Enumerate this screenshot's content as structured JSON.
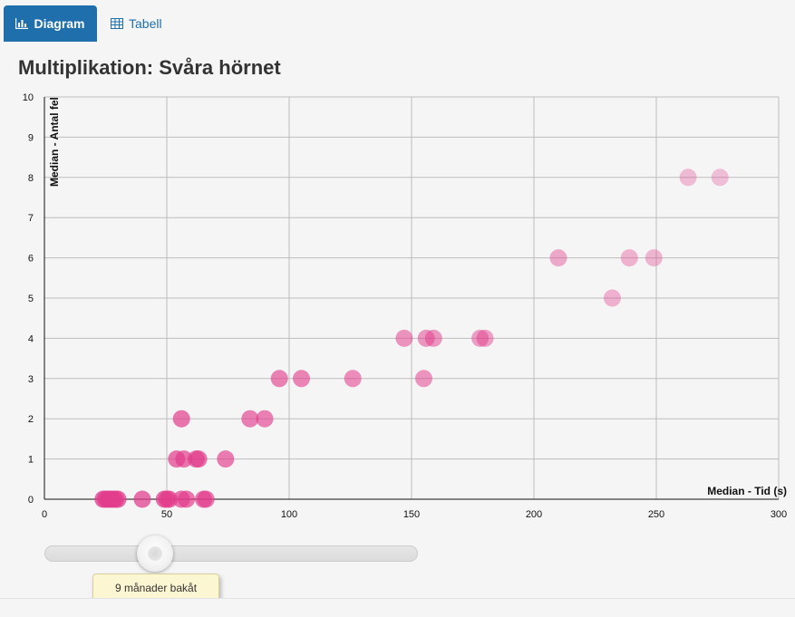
{
  "tabs": {
    "diagram_label": "Diagram",
    "tabell_label": "Tabell"
  },
  "slider": {
    "tooltip": "9 månader bakåt"
  },
  "colors": {
    "active_tab": "#1f6fad",
    "point": "#e23c8c"
  },
  "chart_data": {
    "type": "scatter",
    "title": "Multiplikation: Svåra hörnet",
    "xlabel": "Median - Tid (s)",
    "ylabel": "Median - Antal fel",
    "xlim": [
      0,
      300
    ],
    "ylim": [
      0,
      10
    ],
    "x_ticks": [
      0,
      50,
      100,
      150,
      200,
      250,
      300
    ],
    "y_ticks": [
      0,
      1,
      2,
      3,
      4,
      5,
      6,
      7,
      8,
      9,
      10
    ],
    "grid": true,
    "points": [
      {
        "x": 24,
        "y": 0
      },
      {
        "x": 25,
        "y": 0
      },
      {
        "x": 26,
        "y": 0
      },
      {
        "x": 27,
        "y": 0
      },
      {
        "x": 28,
        "y": 0
      },
      {
        "x": 29,
        "y": 0
      },
      {
        "x": 30,
        "y": 0
      },
      {
        "x": 40,
        "y": 0
      },
      {
        "x": 49,
        "y": 0
      },
      {
        "x": 50,
        "y": 0
      },
      {
        "x": 51,
        "y": 0
      },
      {
        "x": 56,
        "y": 0
      },
      {
        "x": 58,
        "y": 0
      },
      {
        "x": 65,
        "y": 0
      },
      {
        "x": 66,
        "y": 0
      },
      {
        "x": 54,
        "y": 1
      },
      {
        "x": 57,
        "y": 1
      },
      {
        "x": 62,
        "y": 1
      },
      {
        "x": 63,
        "y": 1
      },
      {
        "x": 74,
        "y": 1
      },
      {
        "x": 56,
        "y": 2
      },
      {
        "x": 84,
        "y": 2
      },
      {
        "x": 90,
        "y": 2
      },
      {
        "x": 96,
        "y": 3
      },
      {
        "x": 105,
        "y": 3
      },
      {
        "x": 126,
        "y": 3
      },
      {
        "x": 155,
        "y": 3
      },
      {
        "x": 147,
        "y": 4
      },
      {
        "x": 156,
        "y": 4
      },
      {
        "x": 159,
        "y": 4
      },
      {
        "x": 178,
        "y": 4
      },
      {
        "x": 180,
        "y": 4
      },
      {
        "x": 232,
        "y": 5
      },
      {
        "x": 210,
        "y": 6
      },
      {
        "x": 239,
        "y": 6
      },
      {
        "x": 249,
        "y": 6
      },
      {
        "x": 263,
        "y": 8
      },
      {
        "x": 276,
        "y": 8
      }
    ]
  }
}
